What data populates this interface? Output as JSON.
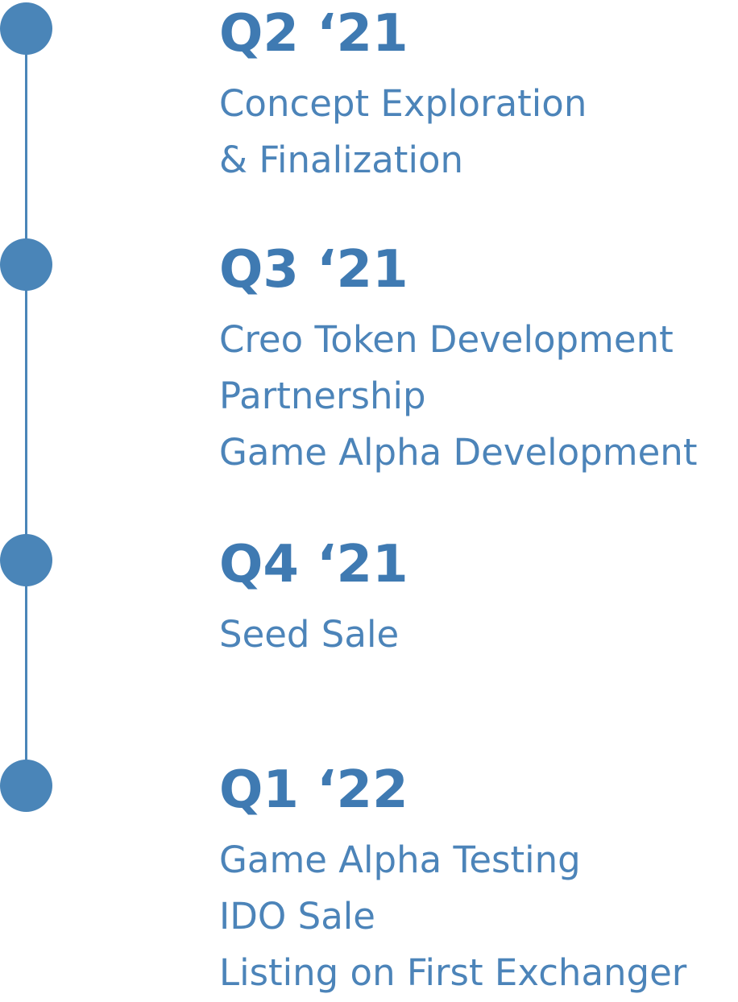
{
  "accent_color": "#4a85b8",
  "milestones": [
    {
      "quarter": "Q2 ‘21",
      "items": [
        "Concept Exploration",
        "& Finalization"
      ]
    },
    {
      "quarter": "Q3 ‘21",
      "items": [
        "Creo Token Development",
        "Partnership",
        "Game Alpha Development"
      ]
    },
    {
      "quarter": "Q4 ‘21",
      "items": [
        "Seed Sale"
      ]
    },
    {
      "quarter": "Q1 ‘22",
      "items": [
        "Game Alpha Testing",
        "IDO Sale",
        "Listing on First Exchanger"
      ]
    }
  ]
}
